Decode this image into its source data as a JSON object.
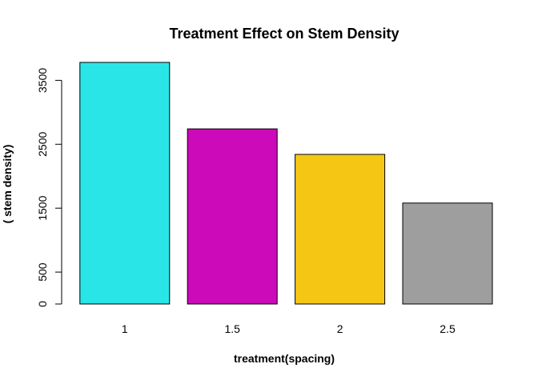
{
  "chart_data": {
    "type": "bar",
    "title": "Treatment Effect on Stem Density",
    "xlabel": "treatment(spacing)",
    "ylabel": "( stem density)",
    "categories": [
      "1",
      "1.5",
      "2",
      "2.5"
    ],
    "values": [
      3780,
      2740,
      2340,
      1580
    ],
    "colors": [
      "#29e5e8",
      "#cc0ab9",
      "#f5c714",
      "#9e9e9e"
    ],
    "yticks": [
      0,
      500,
      1500,
      2500,
      3500
    ],
    "ytick_labels": [
      "0",
      "500",
      "1500",
      "2500",
      "3500"
    ],
    "ylim": [
      0,
      3780
    ],
    "grid": false,
    "legend": "none"
  }
}
